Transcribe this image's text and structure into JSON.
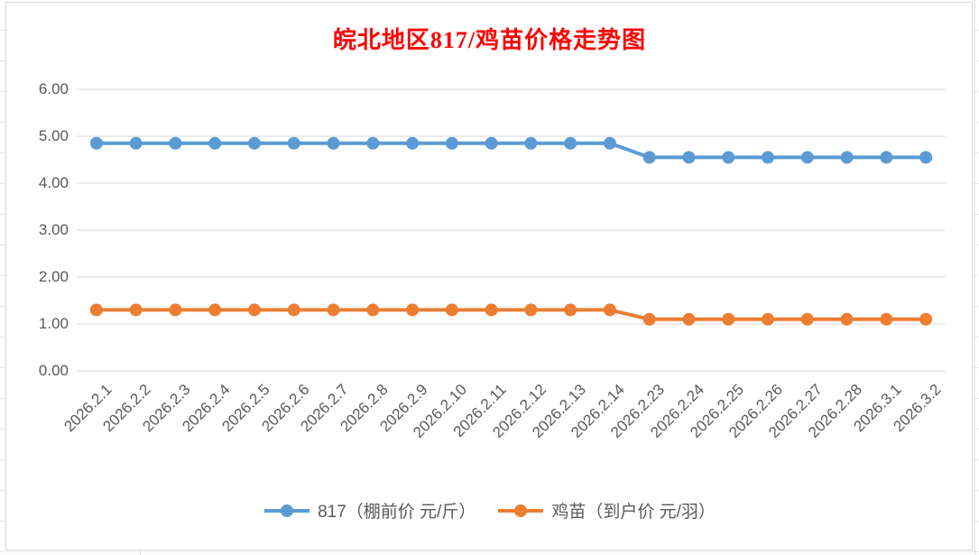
{
  "chart_data": {
    "type": "line",
    "title": "皖北地区817/鸡苗价格走势图",
    "title_color": "#FF0000",
    "categories": [
      "2026.2.1",
      "2026.2.2",
      "2026.2.3",
      "2026.2.4",
      "2026.2.5",
      "2026.2.6",
      "2026.2.7",
      "2026.2.8",
      "2026.2.9",
      "2026.2.10",
      "2026.2.11",
      "2026.2.12",
      "2026.2.13",
      "2026.2.14",
      "2026.2.23",
      "2026.2.24",
      "2026.2.25",
      "2026.2.26",
      "2026.2.27",
      "2026.2.28",
      "2026.3.1",
      "2026.3.2"
    ],
    "series": [
      {
        "name": "817（棚前价 元/斤）",
        "color": "#5B9BD5",
        "values": [
          4.85,
          4.85,
          4.85,
          4.85,
          4.85,
          4.85,
          4.85,
          4.85,
          4.85,
          4.85,
          4.85,
          4.85,
          4.85,
          4.85,
          4.55,
          4.55,
          4.55,
          4.55,
          4.55,
          4.55,
          4.55,
          4.55
        ]
      },
      {
        "name": "鸡苗（到户价 元/羽）",
        "color": "#ED7D31",
        "values": [
          1.3,
          1.3,
          1.3,
          1.3,
          1.3,
          1.3,
          1.3,
          1.3,
          1.3,
          1.3,
          1.3,
          1.3,
          1.3,
          1.3,
          1.1,
          1.1,
          1.1,
          1.1,
          1.1,
          1.1,
          1.1,
          1.1
        ]
      }
    ],
    "ylim": [
      0,
      6
    ],
    "ytick_step": 1,
    "ytick_labels": [
      "6.00",
      "5.00",
      "4.00",
      "3.00",
      "2.00",
      "1.00",
      "0.00"
    ],
    "grid": true,
    "gridline_color": "#D9D9D9",
    "axis_text_color": "#595959",
    "legend_position": "bottom"
  }
}
